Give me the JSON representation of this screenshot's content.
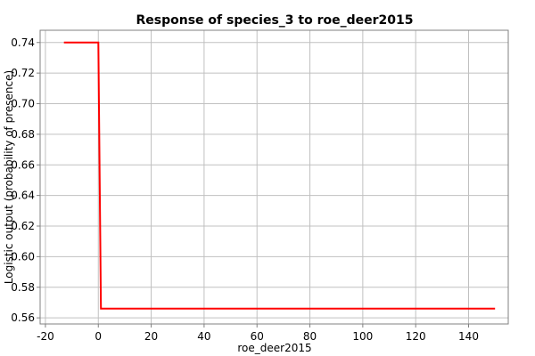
{
  "chart_data": {
    "type": "line",
    "title": "Response of species_3 to roe_deer2015",
    "xlabel": "roe_deer2015",
    "ylabel": "Logistic output (probability of presence)",
    "xlim": [
      -22,
      155
    ],
    "ylim": [
      0.556,
      0.748
    ],
    "xticks": [
      -20,
      0,
      20,
      40,
      60,
      80,
      100,
      120,
      140
    ],
    "xtick_labels": [
      "-20",
      "0",
      "20",
      "40",
      "60",
      "80",
      "100",
      "120",
      "140"
    ],
    "yticks": [
      0.56,
      0.58,
      0.6,
      0.62,
      0.64,
      0.66,
      0.68,
      0.7,
      0.72,
      0.74
    ],
    "ytick_labels": [
      "0.56",
      "0.58",
      "0.60",
      "0.62",
      "0.64",
      "0.66",
      "0.68",
      "0.70",
      "0.72",
      "0.74"
    ],
    "grid": true,
    "series": [
      {
        "color": "#ff0000",
        "x": [
          -13,
          0,
          1,
          150
        ],
        "y": [
          0.74,
          0.74,
          0.566,
          0.566
        ]
      }
    ]
  }
}
